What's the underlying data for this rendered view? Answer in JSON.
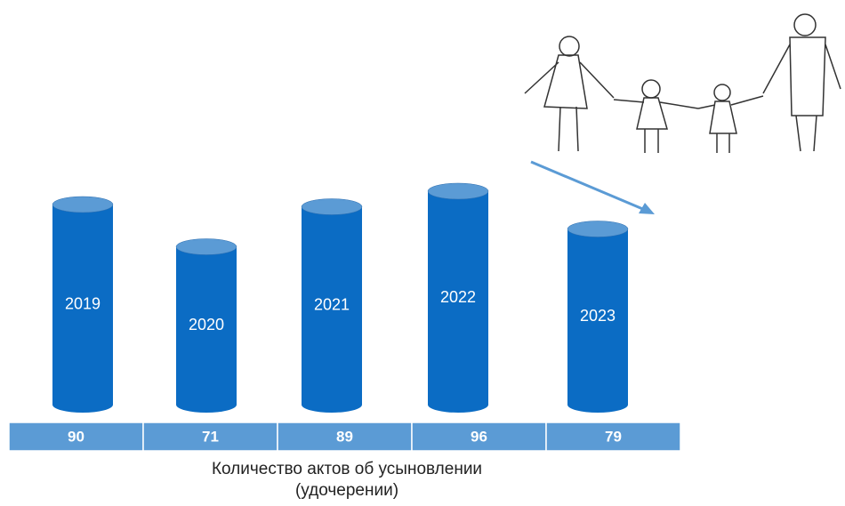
{
  "chart_data": {
    "type": "bar",
    "title": "Количество актов об усыновлении (удочерении)",
    "categories": [
      "2019",
      "2020",
      "2021",
      "2022",
      "2023"
    ],
    "values": [
      90,
      71,
      89,
      96,
      79
    ],
    "color": "#0b6cc4"
  }
}
